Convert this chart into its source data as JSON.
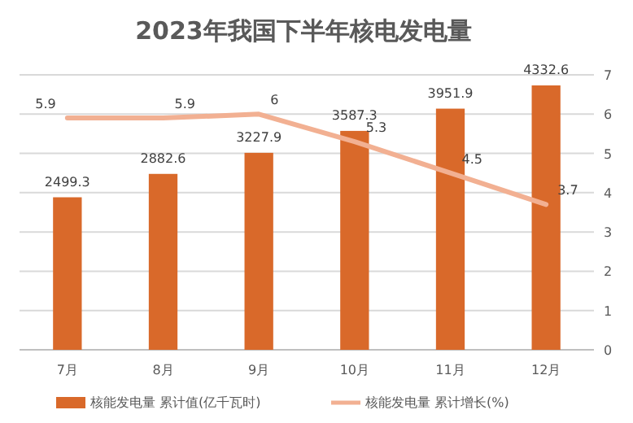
{
  "chart_data": {
    "type": "bar",
    "title": "2023年我国下半年核电发电量",
    "categories": [
      "7月",
      "8月",
      "9月",
      "10月",
      "11月",
      "12月"
    ],
    "series": [
      {
        "name": "核能发电量 累计值(亿千瓦时)",
        "color": "#d9692a",
        "values": [
          2499.3,
          2882.6,
          3227.9,
          3587.3,
          3951.9,
          4332.6
        ]
      },
      {
        "name": "核能发电量 累计增长(%)",
        "type": "line",
        "axis": "y2",
        "color": "#f2b092",
        "values": [
          5.9,
          5.9,
          6,
          5.3,
          4.5,
          3.7
        ]
      }
    ],
    "y2lim": [
      0,
      7
    ],
    "y2ticks": [
      0,
      1,
      2,
      3,
      4,
      5,
      6,
      7
    ],
    "grid": "y",
    "legend": "bottom",
    "data_labels": true,
    "marker": "none",
    "line_style": "solid"
  }
}
